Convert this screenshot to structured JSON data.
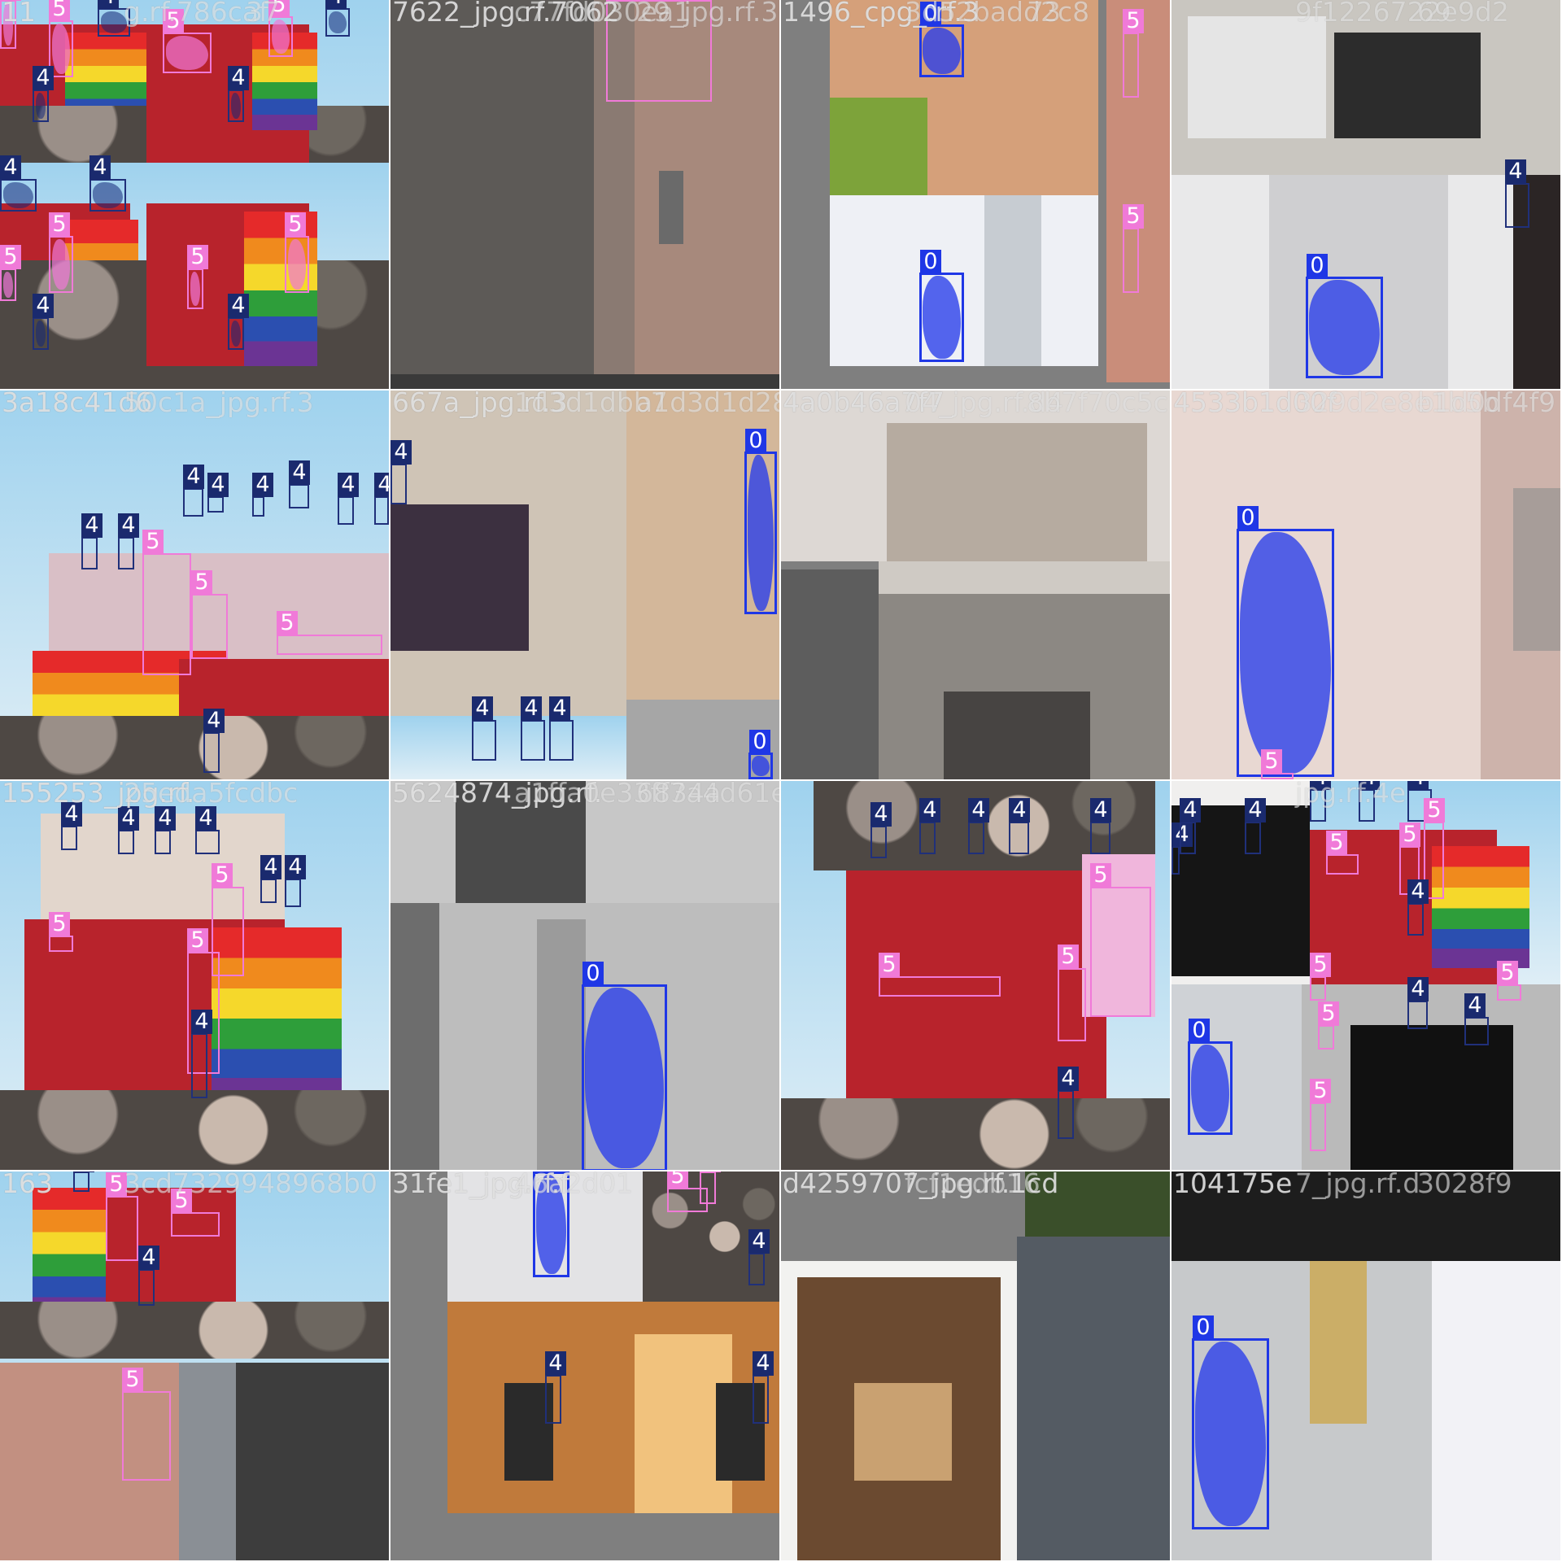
{
  "mosaic": {
    "tiles": [
      {
        "id": "t1",
        "name_a": "11",
        "name_b": "g.rf.786caf",
        "name_c": "37"
      },
      {
        "id": "t2",
        "name_a": "7622_jpg.rf.7062",
        "name_b": "c77fd030ea1",
        "name_c": "29_jpg.rf.3c"
      },
      {
        "id": "t3",
        "name_a": "1496_cpg_.rf.3",
        "name_b": "3d52badd2c8",
        "name_c": "73"
      },
      {
        "id": "t4",
        "name_a": "",
        "name_b": "9f1226722e9d2",
        "name_c": "69"
      },
      {
        "id": "t5",
        "name_a": "3a18c41d6",
        "name_b": "50c1a_jpg.rf.3",
        "name_c": ""
      },
      {
        "id": "t6",
        "name_a": "667a_jpg.rf.3",
        "name_b": "1d3d1dbb7",
        "name_c": "a1d3d1d28c8"
      },
      {
        "id": "t7",
        "name_a": "4a0b46a7f7",
        "name_b": "04_jpg.rf.d4",
        "name_c": "8b7f70c5c10"
      },
      {
        "id": "t8",
        "name_a": "4533b1d00f",
        "name_b": "329d2e8e1b5b",
        "name_c": "b1d0df4f9"
      },
      {
        "id": "t9",
        "name_a": "155253_jpg.rf.",
        "name_b": "25eda5fcdbc",
        "name_c": ""
      },
      {
        "id": "t10",
        "name_a": "5624874_jpg.rf.",
        "name_b": "a1ffa0e33ff7a4d61e90d",
        "name_c": "6834a"
      },
      {
        "id": "t11",
        "name_a": "",
        "name_b": "",
        "name_c": ""
      },
      {
        "id": "t12",
        "name_a": "",
        "name_b": "jpg.rf.4e",
        "name_c": ""
      },
      {
        "id": "t13",
        "name_a": "163",
        "name_b": "3cd7329948968b0",
        "name_c": ""
      },
      {
        "id": "t14",
        "name_a": "31fe1_jpg.rf.f",
        "name_b": "46a2d01",
        "name_c": ""
      },
      {
        "id": "t15",
        "name_a": "d4259707_jpg.rf.1cd",
        "name_b": "fcf1edb16",
        "name_c": ""
      },
      {
        "id": "t16",
        "name_a": "104175e",
        "name_b": "7_jpg.rf.d",
        "name_c": "3028f9"
      }
    ]
  },
  "classes": {
    "c0": {
      "label": "0",
      "color": "#1f37e6"
    },
    "c4": {
      "label": "4",
      "color": "#1a2a6e"
    },
    "c5": {
      "label": "5",
      "color": "#f07ad8"
    }
  }
}
